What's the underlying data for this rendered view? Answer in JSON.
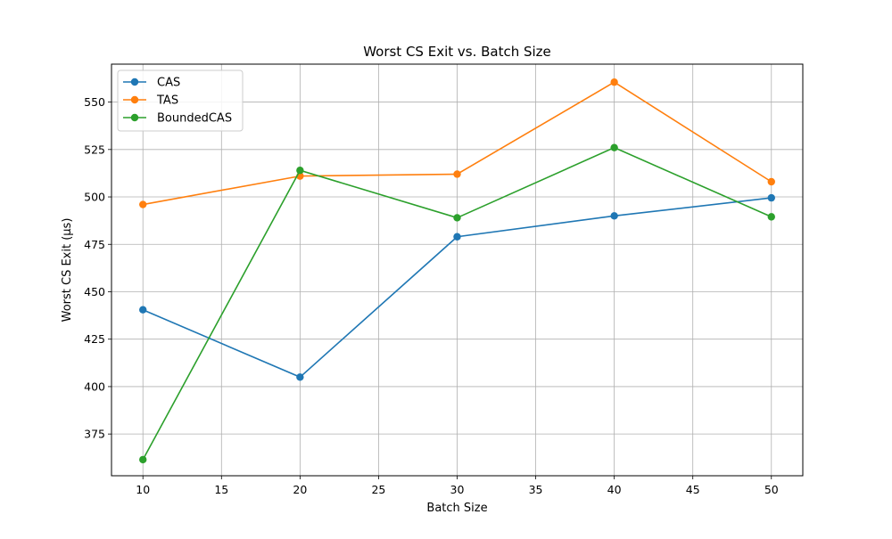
{
  "chart_data": {
    "type": "line",
    "title": "Worst CS Exit vs. Batch Size",
    "xlabel": "Batch Size",
    "ylabel": "Worst CS Exit (µs)",
    "x": [
      10,
      20,
      30,
      40,
      50
    ],
    "xlim": [
      8.0,
      52.0
    ],
    "ylim": [
      353.0,
      570.0
    ],
    "xticks": [
      10,
      15,
      20,
      25,
      30,
      35,
      40,
      45,
      50
    ],
    "yticks": [
      375,
      400,
      425,
      450,
      475,
      500,
      525,
      550
    ],
    "grid": true,
    "legend_position": "top-left",
    "series": [
      {
        "name": "CAS",
        "color": "#1f77b4",
        "values": [
          440.5,
          405.0,
          479.0,
          490.0,
          499.5
        ]
      },
      {
        "name": "TAS",
        "color": "#ff7f0e",
        "values": [
          496.0,
          511.0,
          512.0,
          560.5,
          508.0
        ]
      },
      {
        "name": "BoundedCAS",
        "color": "#2ca02c",
        "values": [
          361.5,
          514.0,
          489.0,
          526.0,
          489.5
        ]
      }
    ]
  }
}
